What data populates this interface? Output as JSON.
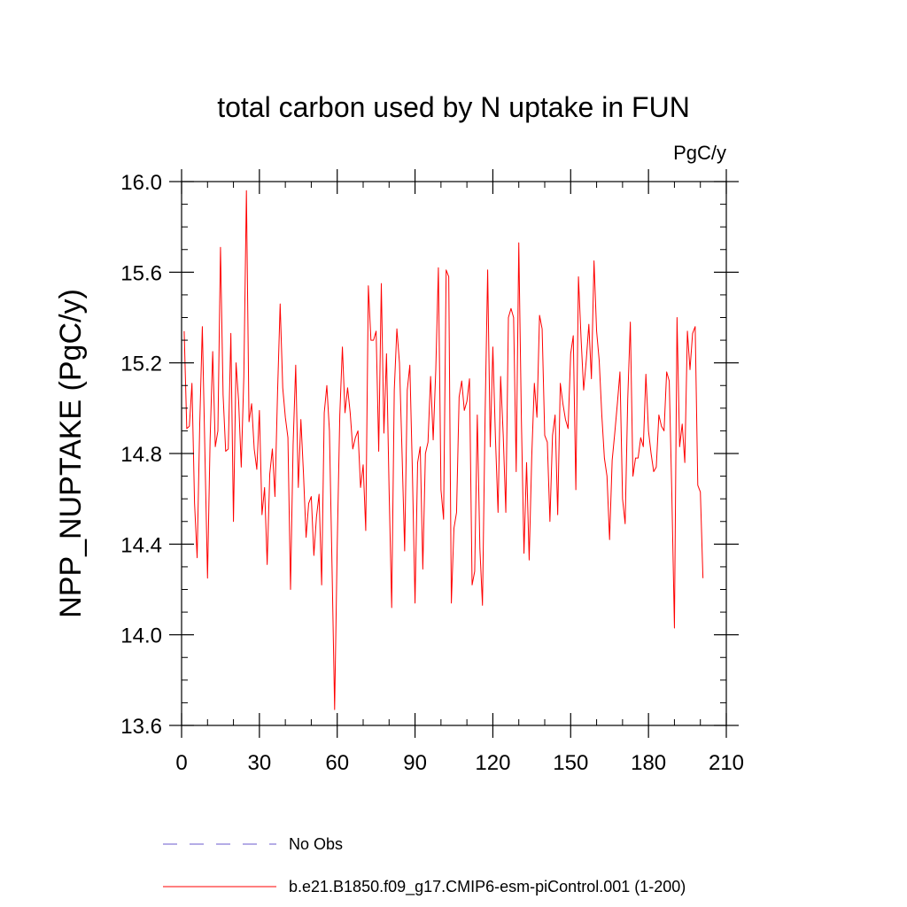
{
  "chart_data": {
    "type": "line",
    "title": "total carbon used by N uptake in FUN",
    "units": "PgC/y",
    "xlabel": "",
    "ylabel": "NPP_NUPTAKE  (PgC/y)",
    "xlim": [
      0,
      210
    ],
    "ylim": [
      13.6,
      16.0
    ],
    "xticks": [
      0,
      30,
      60,
      90,
      120,
      150,
      180,
      210
    ],
    "xtick_labels": [
      "0",
      "30",
      "60",
      "90",
      "120",
      "150",
      "180",
      "210"
    ],
    "yticks": [
      13.6,
      14.0,
      14.4,
      14.8,
      15.2,
      15.6,
      16.0
    ],
    "ytick_labels": [
      "13.6",
      "14.0",
      "14.4",
      "14.8",
      "15.2",
      "15.6",
      "16.0"
    ],
    "grid": false,
    "legend_position": "bottom",
    "series": [
      {
        "name": "No Obs",
        "color": "#6a5acd",
        "dash": true,
        "x": [],
        "y": []
      },
      {
        "name": "b.e21.B1850.f09_g17.CMIP6-esm-piControl.001 (1-200)",
        "color": "#ff0000",
        "dash": false,
        "x_start": 1,
        "x_step": 1,
        "y": [
          15.34,
          14.91,
          14.92,
          15.11,
          14.58,
          14.34,
          14.93,
          15.36,
          14.8,
          14.25,
          14.86,
          15.25,
          14.83,
          14.9,
          15.71,
          15.06,
          14.81,
          14.82,
          15.33,
          14.5,
          15.2,
          15.03,
          14.74,
          15.14,
          15.96,
          14.94,
          15.02,
          14.82,
          14.73,
          14.99,
          14.53,
          14.65,
          14.31,
          14.71,
          14.82,
          14.61,
          15.07,
          15.46,
          15.09,
          14.96,
          14.87,
          14.2,
          14.84,
          15.19,
          14.65,
          14.95,
          14.71,
          14.43,
          14.58,
          14.61,
          14.35,
          14.52,
          14.62,
          14.22,
          14.98,
          15.1,
          14.9,
          14.3,
          13.67,
          14.39,
          14.97,
          15.27,
          14.98,
          15.09,
          14.98,
          14.82,
          14.87,
          14.9,
          14.65,
          14.75,
          14.46,
          15.54,
          15.3,
          15.3,
          15.34,
          14.81,
          15.55,
          14.89,
          15.24,
          14.64,
          14.12,
          15.08,
          15.35,
          15.2,
          14.8,
          14.37,
          15.08,
          15.19,
          14.71,
          14.14,
          14.76,
          14.83,
          14.29,
          14.8,
          14.85,
          15.14,
          14.86,
          15.17,
          15.62,
          14.64,
          14.51,
          15.61,
          15.58,
          14.14,
          14.47,
          14.54,
          15.05,
          15.12,
          14.99,
          15.03,
          15.13,
          14.22,
          14.28,
          14.97,
          14.38,
          14.13,
          14.96,
          15.61,
          14.83,
          15.27,
          14.87,
          14.54,
          15.14,
          14.88,
          14.54,
          15.4,
          15.44,
          15.4,
          14.72,
          15.73,
          14.95,
          14.36,
          14.76,
          14.33,
          14.79,
          15.11,
          14.96,
          15.41,
          15.35,
          14.88,
          14.85,
          14.5,
          14.88,
          14.97,
          14.53,
          15.11,
          15.02,
          14.95,
          14.91,
          15.24,
          15.32,
          14.64,
          15.58,
          15.31,
          15.08,
          15.21,
          15.37,
          15.13,
          15.65,
          15.34,
          15.21,
          14.97,
          14.78,
          14.7,
          14.42,
          14.77,
          14.89,
          15.02,
          15.16,
          14.6,
          14.49,
          15.04,
          15.38,
          14.7,
          14.78,
          14.78,
          14.87,
          14.83,
          15.15,
          14.9,
          14.8,
          14.72,
          14.74,
          14.97,
          14.92,
          14.9,
          15.16,
          15.12,
          14.62,
          14.03,
          15.4,
          14.83,
          14.93,
          14.76,
          15.34,
          15.17,
          15.33,
          15.36,
          14.66,
          14.63,
          14.25
        ]
      }
    ]
  }
}
